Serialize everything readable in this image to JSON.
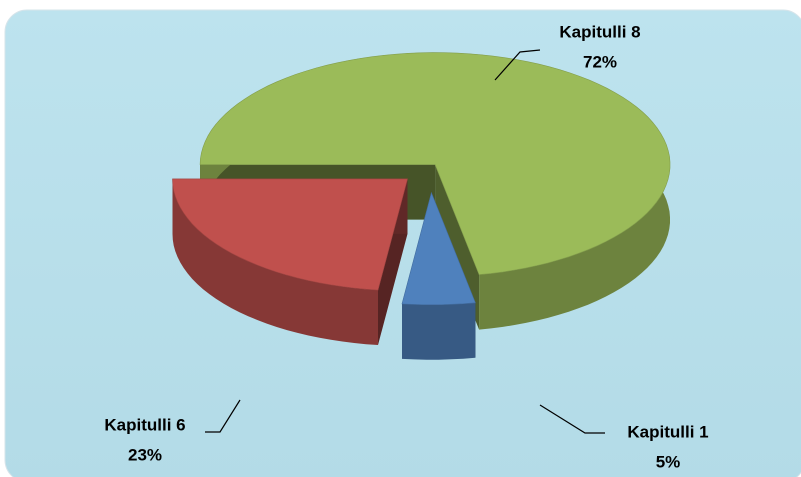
{
  "chart_data": {
    "type": "pie3d",
    "categories": [
      "Kapitulli 8",
      "Kapitulli 1",
      "Kapitulli 6"
    ],
    "values": [
      72,
      5,
      23
    ],
    "value_labels": [
      "72%",
      "5%",
      "23%"
    ],
    "colors": [
      "#9bbb59",
      "#4f81bd",
      "#c0504d"
    ]
  }
}
